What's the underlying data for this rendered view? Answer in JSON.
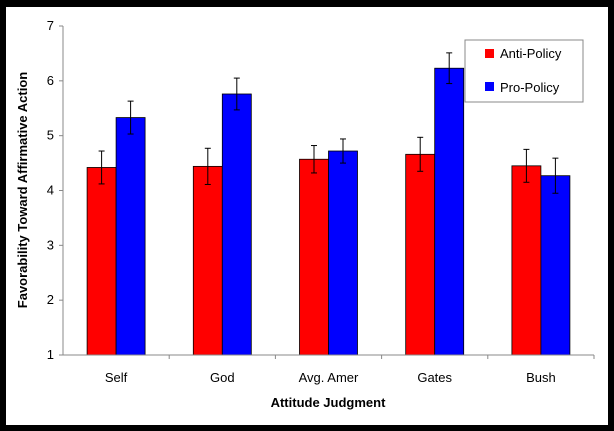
{
  "chart_data": {
    "type": "bar",
    "title": "",
    "xlabel": "Attitude Judgment",
    "ylabel": "Favorability Toward Affirmative Action",
    "categories": [
      "Self",
      "God",
      "Avg. Amer",
      "Gates",
      "Bush"
    ],
    "ylim": [
      1,
      7
    ],
    "yticks": [
      1,
      2,
      3,
      4,
      5,
      6,
      7
    ],
    "grid": false,
    "legend_position": "top-right",
    "series": [
      {
        "name": "Anti-Policy",
        "color": "#ff0000",
        "values": [
          4.42,
          4.44,
          4.57,
          4.66,
          4.45
        ],
        "error": [
          0.3,
          0.33,
          0.25,
          0.31,
          0.3
        ]
      },
      {
        "name": "Pro-Policy",
        "color": "#0000ff",
        "values": [
          5.33,
          5.76,
          4.72,
          6.23,
          4.27
        ],
        "error": [
          0.3,
          0.29,
          0.22,
          0.28,
          0.32
        ]
      }
    ]
  }
}
